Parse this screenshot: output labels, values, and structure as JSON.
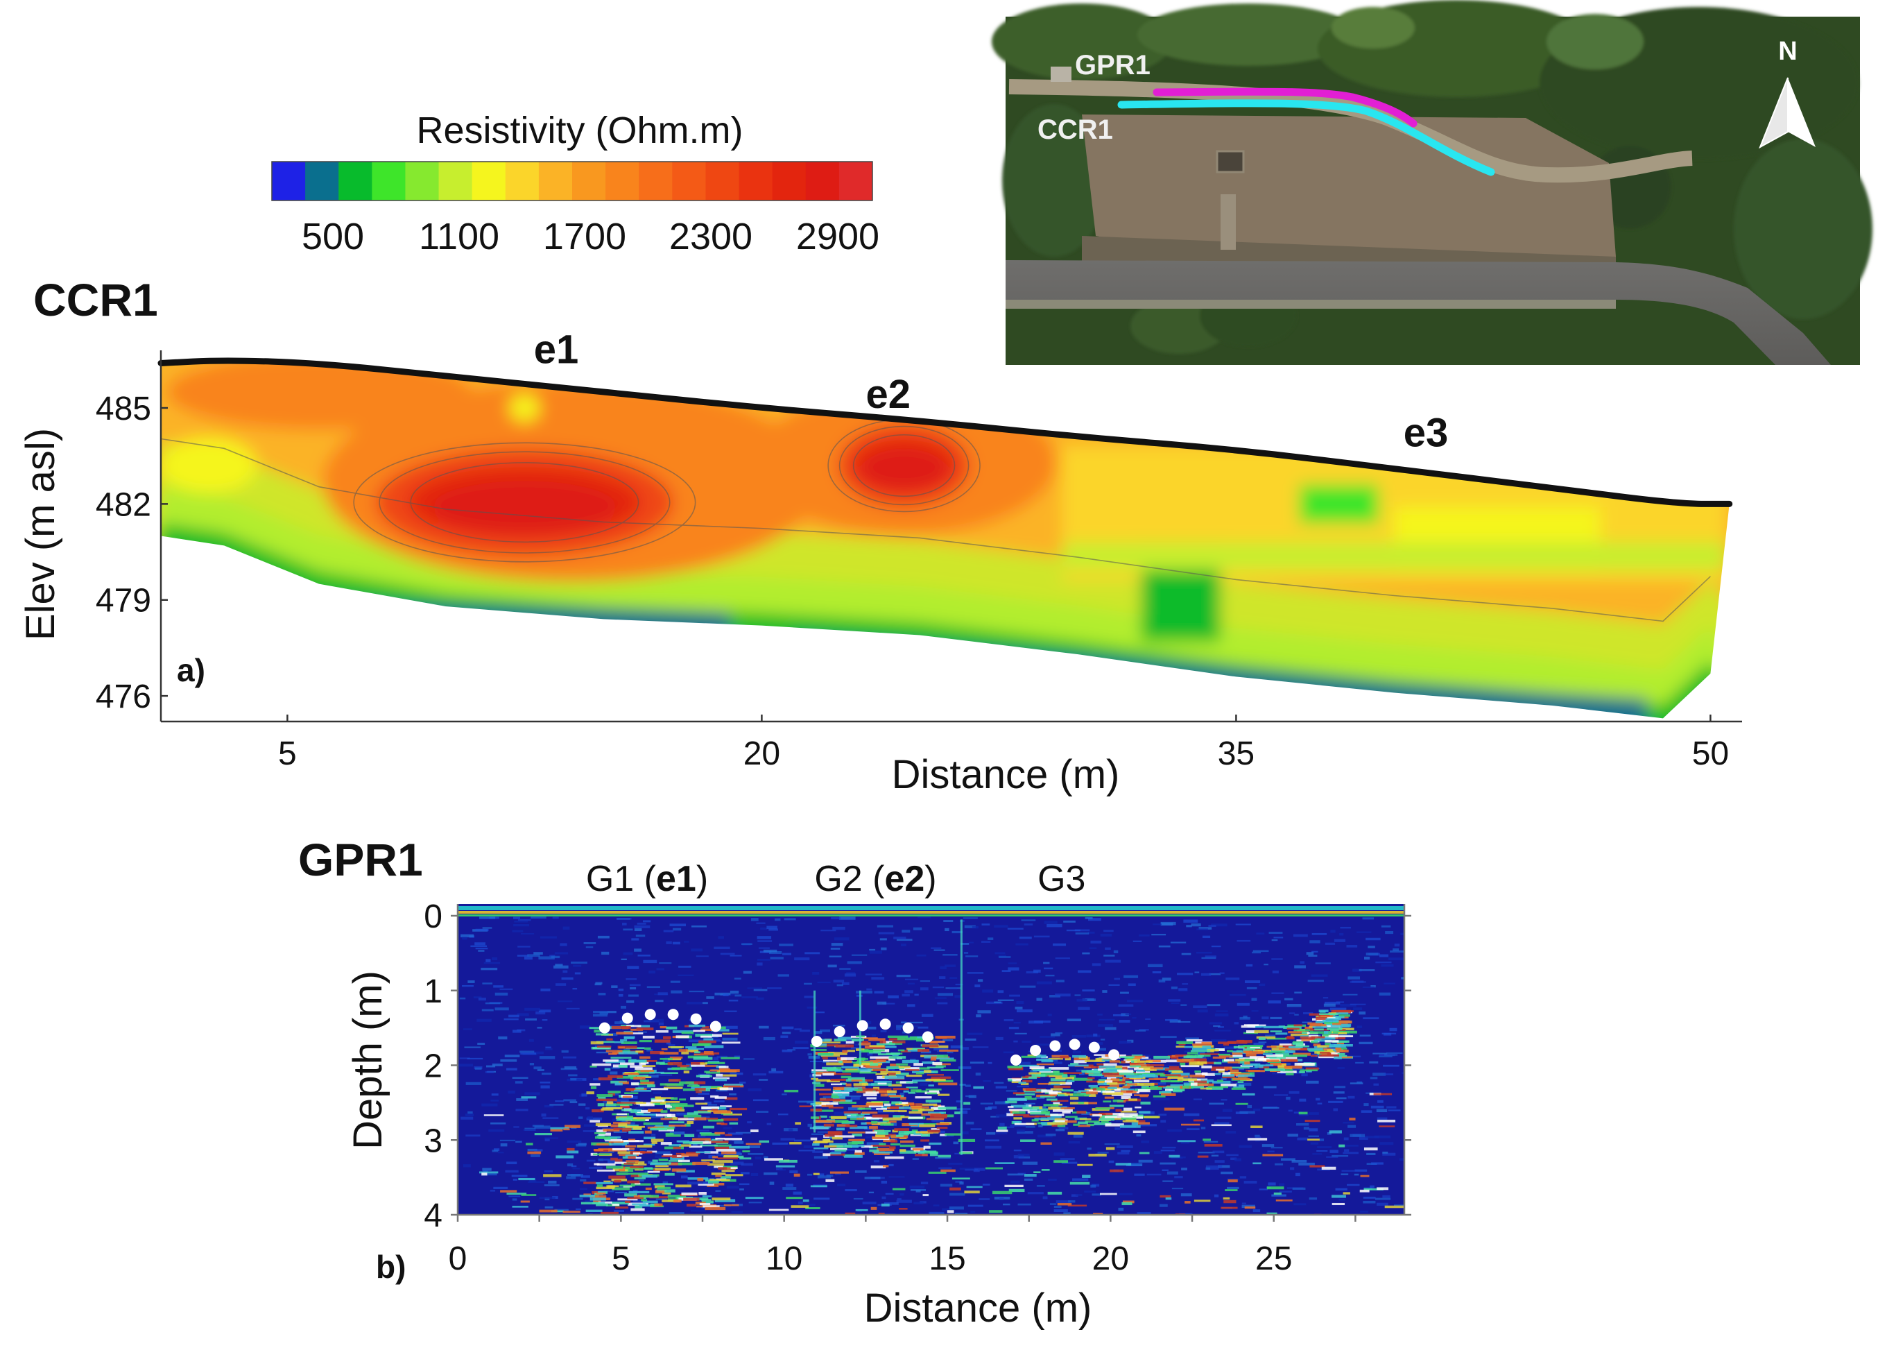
{
  "colorbar": {
    "title": "Resistivity (Ohm.m)",
    "ticks": [
      "500",
      "1100",
      "1700",
      "2300",
      "2900"
    ],
    "colors": [
      "#1e22e6",
      "#0a6f8e",
      "#08bb2c",
      "#3ee52a",
      "#86e92f",
      "#c7ee2e",
      "#f5f51e",
      "#fbd52a",
      "#fbb326",
      "#f9981f",
      "#f9841c",
      "#f76e1a",
      "#f45a16",
      "#ef4712",
      "#ea3310",
      "#e3250e",
      "#de1c14",
      "#e02a2a"
    ]
  },
  "map": {
    "labels": {
      "gpr": "GPR1",
      "ccr": "CCR1",
      "north": "N"
    },
    "colors": {
      "gpr_line": "#e21fd4",
      "ccr_line": "#29e6f0"
    }
  },
  "chart_data": [
    {
      "type": "heatmap",
      "panel": "a)",
      "title": "CCR1",
      "xlabel": "Distance (m)",
      "ylabel": "Elev (m asl)",
      "xlim": [
        1,
        51
      ],
      "ylim": [
        475.2,
        486.8
      ],
      "xticks": [
        "5",
        "20",
        "35",
        "50"
      ],
      "xtick_values": [
        5,
        20,
        35,
        50
      ],
      "yticks": [
        "485",
        "482",
        "479",
        "476"
      ],
      "ytick_values": [
        485,
        482,
        479,
        476
      ],
      "annotations": [
        "e1",
        "e2",
        "e3"
      ],
      "annotation_positions": [
        [
          13.5,
          486.4
        ],
        [
          24.0,
          485.0
        ],
        [
          41.0,
          483.8
        ]
      ],
      "anomalies": [
        {
          "name": "e1",
          "x": [
            8,
            17
          ],
          "elev": [
            480.5,
            483.6
          ],
          "resistivity": "2900"
        },
        {
          "name": "e2",
          "x": [
            22.5,
            26.5
          ],
          "elev": [
            482,
            484.4
          ],
          "resistivity": "2600"
        }
      ],
      "surface_profile": [
        [
          1,
          486.4
        ],
        [
          3,
          486.5
        ],
        [
          6,
          486.4
        ],
        [
          10,
          486.0
        ],
        [
          15,
          485.5
        ],
        [
          20,
          485.0
        ],
        [
          25,
          484.6
        ],
        [
          30,
          484.1
        ],
        [
          35,
          483.7
        ],
        [
          40,
          483.1
        ],
        [
          45,
          482.5
        ],
        [
          49,
          482.0
        ],
        [
          50.6,
          482.0
        ]
      ],
      "bottom_profile": [
        [
          1,
          481.0
        ],
        [
          3,
          480.7
        ],
        [
          6,
          479.5
        ],
        [
          10,
          478.8
        ],
        [
          15,
          478.4
        ],
        [
          20,
          478.2
        ],
        [
          25,
          477.9
        ],
        [
          30,
          477.3
        ],
        [
          35,
          476.6
        ],
        [
          40,
          476.1
        ],
        [
          45,
          475.7
        ],
        [
          48.5,
          475.3
        ],
        [
          50,
          476.7
        ]
      ]
    },
    {
      "type": "heatmap",
      "panel": "b)",
      "title": "GPR1",
      "xlabel": "Distance (m)",
      "ylabel": "Depth (m)",
      "xlim": [
        0,
        29
      ],
      "ylim": [
        4,
        0
      ],
      "xticks": [
        "0",
        "5",
        "10",
        "15",
        "20",
        "25"
      ],
      "xtick_values": [
        0,
        5,
        10,
        15,
        20,
        25
      ],
      "yticks": [
        "0",
        "1",
        "2",
        "3",
        "4"
      ],
      "ytick_values": [
        0,
        1,
        2,
        3,
        4
      ],
      "annotations": [
        {
          "label": "G1 (e1)",
          "prefix": "G1 (",
          "bold": "e1",
          "suffix": ")",
          "x": 5.8
        },
        {
          "label": "G2 (e2)",
          "prefix": "G2 (",
          "bold": "e2",
          "suffix": ")",
          "x": 12.8
        },
        {
          "label": "G3",
          "prefix": "G3",
          "bold": "",
          "suffix": "",
          "x": 18.5
        }
      ],
      "hyperbola_points": [
        [
          [
            4.5,
            1.5
          ],
          [
            5.2,
            1.37
          ],
          [
            5.9,
            1.32
          ],
          [
            6.6,
            1.32
          ],
          [
            7.3,
            1.38
          ],
          [
            7.9,
            1.48
          ]
        ],
        [
          [
            11.0,
            1.68
          ],
          [
            11.7,
            1.55
          ],
          [
            12.4,
            1.47
          ],
          [
            13.1,
            1.45
          ],
          [
            13.8,
            1.5
          ],
          [
            14.4,
            1.62
          ]
        ],
        [
          [
            17.1,
            1.93
          ],
          [
            17.7,
            1.8
          ],
          [
            18.3,
            1.74
          ],
          [
            18.9,
            1.72
          ],
          [
            19.5,
            1.76
          ],
          [
            20.1,
            1.86
          ]
        ]
      ],
      "reflector_band": [
        [
          19.5,
          2.0
        ],
        [
          22,
          1.95
        ],
        [
          24,
          1.75
        ],
        [
          26,
          1.55
        ],
        [
          27,
          1.35
        ]
      ]
    }
  ]
}
